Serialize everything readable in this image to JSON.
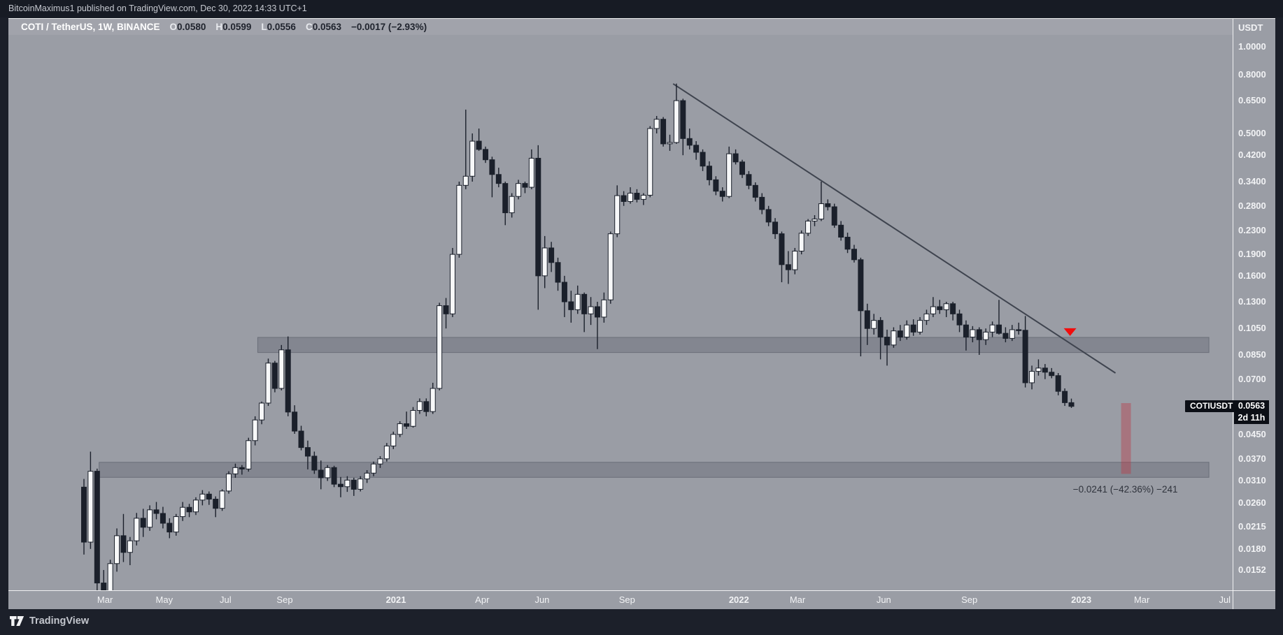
{
  "top_bar": {
    "text": "BitcoinMaximus1 published on TradingView.com, Dec 30, 2022 14:33 UTC+1"
  },
  "symbol_bar": {
    "title": "COTI / TetherUS, 1W, BINANCE",
    "ohlc": [
      {
        "label": "O",
        "value": "0.0580"
      },
      {
        "label": "H",
        "value": "0.0599"
      },
      {
        "label": "L",
        "value": "0.0556"
      },
      {
        "label": "C",
        "value": "0.0563"
      }
    ],
    "change": "−0.0017 (−2.93%)"
  },
  "price_axis": {
    "currency": "USDT",
    "ticks": [
      "1.0000",
      "0.8000",
      "0.6500",
      "0.5000",
      "0.4200",
      "0.3400",
      "0.2800",
      "0.2300",
      "0.1900",
      "0.1600",
      "0.1300",
      "0.1050",
      "0.0850",
      "0.0700",
      "0.0450",
      "0.0370",
      "0.0310",
      "0.0260",
      "0.0215",
      "0.0180",
      "0.0152"
    ],
    "current_price": "0.0563",
    "countdown": "2d 11h"
  },
  "time_axis": {
    "labels": [
      {
        "text": "Mar",
        "week": 3.2,
        "year": false
      },
      {
        "text": "May",
        "week": 12.2,
        "year": false
      },
      {
        "text": "Jul",
        "week": 21.5,
        "year": false
      },
      {
        "text": "Sep",
        "week": 30.5,
        "year": false
      },
      {
        "text": "2021",
        "week": 47.4,
        "year": true
      },
      {
        "text": "Apr",
        "week": 60.5,
        "year": false
      },
      {
        "text": "Jun",
        "week": 69.6,
        "year": false
      },
      {
        "text": "Sep",
        "week": 82.5,
        "year": false
      },
      {
        "text": "2022",
        "week": 99.5,
        "year": true
      },
      {
        "text": "Mar",
        "week": 108.4,
        "year": false
      },
      {
        "text": "Jun",
        "week": 121.5,
        "year": false
      },
      {
        "text": "Sep",
        "week": 134.5,
        "year": false
      },
      {
        "text": "2023",
        "week": 151.5,
        "year": true
      },
      {
        "text": "Mar",
        "week": 160.7,
        "year": false
      },
      {
        "text": "Jul",
        "week": 173.3,
        "year": false
      }
    ]
  },
  "chart_overlays": {
    "symbol_tag": "COTIUSDT",
    "trendline": {
      "from": {
        "week": 89.5,
        "price": 0.744
      },
      "to": {
        "week": 156.7,
        "price": 0.0735
      }
    },
    "arrow": {
      "week": 149.8,
      "price": 0.1017
    },
    "projection_bar": {
      "week": 158.3,
      "price_top": 0.0578,
      "price_bottom": 0.0328
    },
    "projection_label": "−0.0241 (−42.36%) −241",
    "projection_label_anchor": {
      "week": 158.2,
      "price": 0.0289
    },
    "zones": [
      {
        "name": "resistance-zone",
        "week_from": 26.4,
        "week_to": 170.9,
        "price_top": 0.0978,
        "price_bottom": 0.0866
      },
      {
        "name": "support-zone",
        "week_from": 2.3,
        "week_to": 170.9,
        "price_top": 0.036,
        "price_bottom": 0.0319
      }
    ]
  },
  "footer": {
    "brand": "TradingView"
  },
  "colors": {
    "page_bg": "#1b1f29",
    "pane_bg": "#9a9da5",
    "candle_down": "#1b202b",
    "candle_up": "#f7f8f9",
    "zone_fill": "rgba(30,36,50,0.18)",
    "zone_border": "rgba(30,36,50,0.30)",
    "trendline": "#3f444f",
    "arrow_red": "#f20c0c",
    "projection_fill": "rgba(185,60,72,0.42)",
    "label_box_bg": "#0c0f16",
    "axis_text": "#f2f3f5",
    "value_text": "#20242e"
  },
  "chart_data": {
    "type": "candlestick",
    "symbol": "COTI/TetherUS",
    "exchange": "BINANCE",
    "interval": "1W",
    "scale": "log",
    "visible_price_range": [
      0.0128,
      1.05
    ],
    "current": {
      "open": 0.058,
      "high": 0.0599,
      "low": 0.0556,
      "close": 0.0563,
      "change": -0.0017,
      "change_pct": -2.93
    },
    "candles": [
      [
        0.0295,
        0.0315,
        0.0172,
        0.019
      ],
      [
        0.019,
        0.0392,
        0.018,
        0.0335
      ],
      [
        0.0335,
        0.0342,
        0.0125,
        0.0137
      ],
      [
        0.0137,
        0.0152,
        0.0108,
        0.0128
      ],
      [
        0.0128,
        0.0165,
        0.0118,
        0.016
      ],
      [
        0.016,
        0.0212,
        0.015,
        0.02
      ],
      [
        0.02,
        0.0238,
        0.0162,
        0.0175
      ],
      [
        0.0175,
        0.0198,
        0.0158,
        0.0192
      ],
      [
        0.0192,
        0.024,
        0.0185,
        0.023
      ],
      [
        0.023,
        0.0248,
        0.0198,
        0.0214
      ],
      [
        0.0214,
        0.0255,
        0.0208,
        0.0246
      ],
      [
        0.0246,
        0.0262,
        0.0228,
        0.0239
      ],
      [
        0.0239,
        0.0252,
        0.0212,
        0.0221
      ],
      [
        0.0221,
        0.023,
        0.0196,
        0.0206
      ],
      [
        0.0206,
        0.0238,
        0.02,
        0.0233
      ],
      [
        0.0233,
        0.0262,
        0.0225,
        0.0251
      ],
      [
        0.0251,
        0.0258,
        0.0232,
        0.0242
      ],
      [
        0.0242,
        0.0272,
        0.0236,
        0.0266
      ],
      [
        0.0266,
        0.0288,
        0.0255,
        0.0279
      ],
      [
        0.0279,
        0.0285,
        0.0256,
        0.0268
      ],
      [
        0.0268,
        0.0274,
        0.0232,
        0.0249
      ],
      [
        0.0249,
        0.029,
        0.0244,
        0.0286
      ],
      [
        0.0286,
        0.0335,
        0.028,
        0.0328
      ],
      [
        0.0328,
        0.0356,
        0.0318,
        0.0345
      ],
      [
        0.0345,
        0.0352,
        0.0326,
        0.0341
      ],
      [
        0.0341,
        0.0438,
        0.0334,
        0.0428
      ],
      [
        0.0428,
        0.052,
        0.0412,
        0.0505
      ],
      [
        0.0505,
        0.0585,
        0.0488,
        0.0578
      ],
      [
        0.0578,
        0.0825,
        0.0565,
        0.0796
      ],
      [
        0.0796,
        0.081,
        0.063,
        0.065
      ],
      [
        0.065,
        0.092,
        0.064,
        0.0885
      ],
      [
        0.0885,
        0.0985,
        0.052,
        0.0538
      ],
      [
        0.0538,
        0.0568,
        0.0452,
        0.0462
      ],
      [
        0.0462,
        0.0482,
        0.0396,
        0.0405
      ],
      [
        0.0405,
        0.0428,
        0.034,
        0.0378
      ],
      [
        0.0378,
        0.0392,
        0.0328,
        0.0338
      ],
      [
        0.0338,
        0.0365,
        0.029,
        0.0318
      ],
      [
        0.0318,
        0.0352,
        0.031,
        0.0345
      ],
      [
        0.0345,
        0.035,
        0.0295,
        0.0302
      ],
      [
        0.0302,
        0.032,
        0.0272,
        0.0296
      ],
      [
        0.0296,
        0.0322,
        0.0284,
        0.0312
      ],
      [
        0.0312,
        0.0318,
        0.0275,
        0.029
      ],
      [
        0.029,
        0.0322,
        0.0285,
        0.0315
      ],
      [
        0.0315,
        0.0338,
        0.0305,
        0.033
      ],
      [
        0.033,
        0.0362,
        0.0322,
        0.0355
      ],
      [
        0.0355,
        0.0378,
        0.0344,
        0.037
      ],
      [
        0.037,
        0.042,
        0.0362,
        0.041
      ],
      [
        0.041,
        0.046,
        0.04,
        0.045
      ],
      [
        0.045,
        0.05,
        0.044,
        0.049
      ],
      [
        0.049,
        0.054,
        0.047,
        0.048
      ],
      [
        0.048,
        0.056,
        0.0475,
        0.0545
      ],
      [
        0.0545,
        0.06,
        0.053,
        0.0585
      ],
      [
        0.0585,
        0.06,
        0.052,
        0.054
      ],
      [
        0.054,
        0.068,
        0.053,
        0.065
      ],
      [
        0.065,
        0.129,
        0.064,
        0.126
      ],
      [
        0.126,
        0.134,
        0.105,
        0.118
      ],
      [
        0.118,
        0.2,
        0.115,
        0.19
      ],
      [
        0.19,
        0.34,
        0.185,
        0.33
      ],
      [
        0.33,
        0.605,
        0.32,
        0.355
      ],
      [
        0.355,
        0.5,
        0.34,
        0.47
      ],
      [
        0.47,
        0.52,
        0.435,
        0.44
      ],
      [
        0.44,
        0.45,
        0.395,
        0.405
      ],
      [
        0.405,
        0.415,
        0.3,
        0.36
      ],
      [
        0.36,
        0.38,
        0.325,
        0.335
      ],
      [
        0.335,
        0.34,
        0.24,
        0.265
      ],
      [
        0.265,
        0.31,
        0.255,
        0.302
      ],
      [
        0.302,
        0.345,
        0.295,
        0.335
      ],
      [
        0.335,
        0.34,
        0.31,
        0.325
      ],
      [
        0.325,
        0.44,
        0.32,
        0.41
      ],
      [
        0.41,
        0.455,
        0.122,
        0.16
      ],
      [
        0.16,
        0.22,
        0.145,
        0.2
      ],
      [
        0.2,
        0.21,
        0.165,
        0.178
      ],
      [
        0.178,
        0.185,
        0.142,
        0.152
      ],
      [
        0.152,
        0.16,
        0.115,
        0.13
      ],
      [
        0.13,
        0.142,
        0.11,
        0.122
      ],
      [
        0.122,
        0.148,
        0.118,
        0.138
      ],
      [
        0.138,
        0.14,
        0.102,
        0.118
      ],
      [
        0.118,
        0.135,
        0.108,
        0.125
      ],
      [
        0.125,
        0.13,
        0.089,
        0.115
      ],
      [
        0.115,
        0.14,
        0.11,
        0.132
      ],
      [
        0.132,
        0.228,
        0.128,
        0.224
      ],
      [
        0.224,
        0.33,
        0.218,
        0.304
      ],
      [
        0.304,
        0.315,
        0.28,
        0.29
      ],
      [
        0.29,
        0.325,
        0.285,
        0.31
      ],
      [
        0.31,
        0.32,
        0.288,
        0.295
      ],
      [
        0.295,
        0.31,
        0.282,
        0.305
      ],
      [
        0.305,
        0.53,
        0.3,
        0.52
      ],
      [
        0.52,
        0.575,
        0.5,
        0.56
      ],
      [
        0.56,
        0.57,
        0.45,
        0.46
      ],
      [
        0.46,
        0.495,
        0.435,
        0.465
      ],
      [
        0.465,
        0.745,
        0.46,
        0.65
      ],
      [
        0.65,
        0.66,
        0.42,
        0.48
      ],
      [
        0.48,
        0.52,
        0.44,
        0.455
      ],
      [
        0.455,
        0.47,
        0.405,
        0.43
      ],
      [
        0.43,
        0.44,
        0.37,
        0.385
      ],
      [
        0.385,
        0.4,
        0.33,
        0.345
      ],
      [
        0.345,
        0.355,
        0.305,
        0.315
      ],
      [
        0.315,
        0.325,
        0.29,
        0.302
      ],
      [
        0.302,
        0.45,
        0.298,
        0.425
      ],
      [
        0.425,
        0.44,
        0.39,
        0.398
      ],
      [
        0.398,
        0.405,
        0.35,
        0.36
      ],
      [
        0.36,
        0.37,
        0.32,
        0.33
      ],
      [
        0.33,
        0.338,
        0.29,
        0.3
      ],
      [
        0.3,
        0.31,
        0.262,
        0.272
      ],
      [
        0.272,
        0.28,
        0.238,
        0.246
      ],
      [
        0.246,
        0.254,
        0.215,
        0.224
      ],
      [
        0.224,
        0.228,
        0.152,
        0.175
      ],
      [
        0.175,
        0.195,
        0.15,
        0.168
      ],
      [
        0.168,
        0.2,
        0.162,
        0.195
      ],
      [
        0.195,
        0.23,
        0.19,
        0.225
      ],
      [
        0.225,
        0.252,
        0.22,
        0.248
      ],
      [
        0.248,
        0.26,
        0.238,
        0.252
      ],
      [
        0.252,
        0.34,
        0.248,
        0.285
      ],
      [
        0.285,
        0.295,
        0.27,
        0.278
      ],
      [
        0.278,
        0.285,
        0.235,
        0.24
      ],
      [
        0.24,
        0.248,
        0.212,
        0.218
      ],
      [
        0.218,
        0.226,
        0.192,
        0.198
      ],
      [
        0.198,
        0.205,
        0.178,
        0.182
      ],
      [
        0.182,
        0.185,
        0.084,
        0.121
      ],
      [
        0.121,
        0.128,
        0.092,
        0.105
      ],
      [
        0.105,
        0.118,
        0.1,
        0.112
      ],
      [
        0.112,
        0.115,
        0.082,
        0.098
      ],
      [
        0.098,
        0.104,
        0.078,
        0.092
      ],
      [
        0.092,
        0.106,
        0.09,
        0.103
      ],
      [
        0.103,
        0.108,
        0.095,
        0.098
      ],
      [
        0.098,
        0.112,
        0.096,
        0.108
      ],
      [
        0.108,
        0.113,
        0.099,
        0.102
      ],
      [
        0.102,
        0.115,
        0.1,
        0.112
      ],
      [
        0.112,
        0.122,
        0.108,
        0.118
      ],
      [
        0.118,
        0.135,
        0.115,
        0.125
      ],
      [
        0.125,
        0.132,
        0.118,
        0.122
      ],
      [
        0.122,
        0.13,
        0.115,
        0.128
      ],
      [
        0.128,
        0.13,
        0.112,
        0.118
      ],
      [
        0.118,
        0.122,
        0.102,
        0.108
      ],
      [
        0.108,
        0.112,
        0.088,
        0.098
      ],
      [
        0.098,
        0.107,
        0.094,
        0.104
      ],
      [
        0.104,
        0.106,
        0.085,
        0.096
      ],
      [
        0.096,
        0.105,
        0.092,
        0.102
      ],
      [
        0.102,
        0.111,
        0.098,
        0.108
      ],
      [
        0.108,
        0.132,
        0.1,
        0.101
      ],
      [
        0.101,
        0.106,
        0.094,
        0.097
      ],
      [
        0.097,
        0.108,
        0.095,
        0.104
      ],
      [
        0.104,
        0.11,
        0.1,
        0.1035
      ],
      [
        0.1035,
        0.116,
        0.0655,
        0.068
      ],
      [
        0.068,
        0.078,
        0.0645,
        0.0745
      ],
      [
        0.0745,
        0.082,
        0.072,
        0.0765
      ],
      [
        0.0765,
        0.079,
        0.07,
        0.074
      ],
      [
        0.074,
        0.0765,
        0.0705,
        0.072
      ],
      [
        0.072,
        0.0735,
        0.0615,
        0.0635
      ],
      [
        0.0635,
        0.065,
        0.0565,
        0.058
      ],
      [
        0.058,
        0.0599,
        0.0556,
        0.0563
      ]
    ]
  }
}
